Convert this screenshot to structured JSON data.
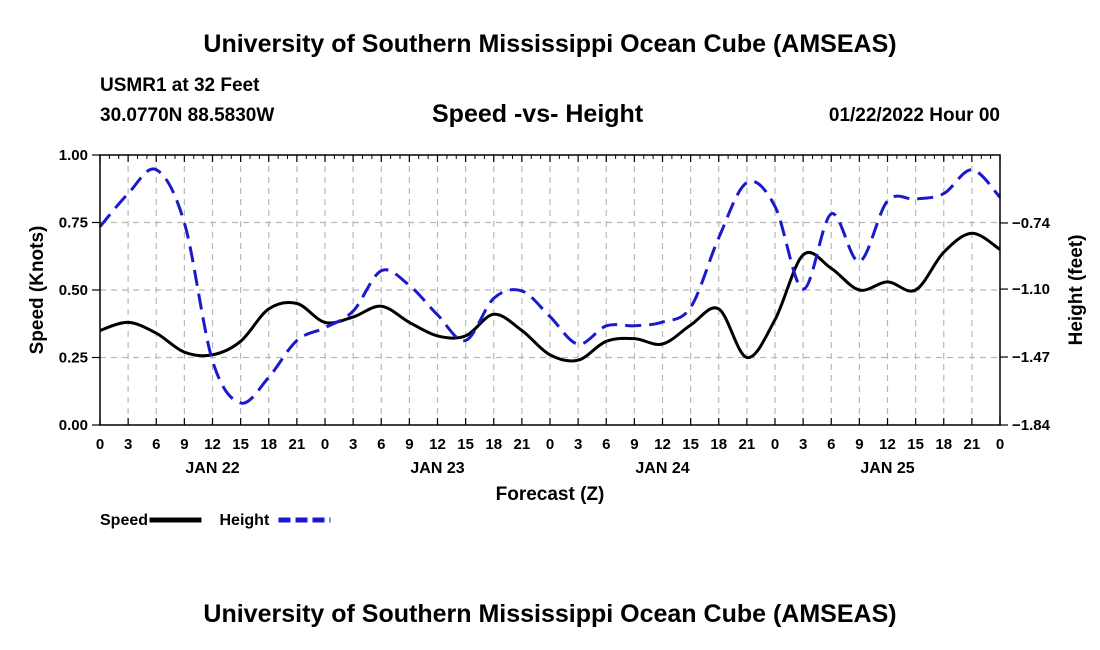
{
  "header": {
    "title": "University of Southern Mississippi Ocean Cube (AMSEAS)",
    "station": "USMR1 at 32 Feet",
    "coords": "30.0770N  88.5830W",
    "chart_title": "Speed -vs- Height",
    "datetime": "01/22/2022 Hour 00"
  },
  "footer": {
    "title": "University of Southern Mississippi Ocean Cube (AMSEAS)"
  },
  "chart_data": {
    "type": "line",
    "title": "Speed -vs- Height",
    "xlabel": "Forecast (Z)",
    "ylabel": "Speed (Knots)",
    "y2label": "Height (feet)",
    "x_unit": "forecast hour",
    "xlim": [
      0,
      96
    ],
    "ylim": [
      0,
      1.0
    ],
    "y2lim": [
      -1.84,
      -0.37
    ],
    "grid": true,
    "x_ticks": [
      0,
      3,
      6,
      9,
      12,
      15,
      18,
      21,
      24,
      27,
      30,
      33,
      36,
      39,
      42,
      45,
      48,
      51,
      54,
      57,
      60,
      63,
      66,
      69,
      72,
      75,
      78,
      81,
      84,
      87,
      90,
      93,
      96
    ],
    "x_tick_labels": [
      "0",
      "3",
      "6",
      "9",
      "12",
      "15",
      "18",
      "21",
      "0",
      "3",
      "6",
      "9",
      "12",
      "15",
      "18",
      "21",
      "0",
      "3",
      "6",
      "9",
      "12",
      "15",
      "18",
      "21",
      "0",
      "3",
      "6",
      "9",
      "12",
      "15",
      "18",
      "21",
      "0"
    ],
    "day_labels": [
      {
        "label": "JAN 22",
        "x": 12
      },
      {
        "label": "JAN 23",
        "x": 36
      },
      {
        "label": "JAN 24",
        "x": 60
      },
      {
        "label": "JAN 25",
        "x": 84
      }
    ],
    "y_ticks": [
      0,
      0.25,
      0.5,
      0.75,
      1.0
    ],
    "y_tick_labels": [
      "0.00",
      "0.25",
      "0.50",
      "0.75",
      "1.00"
    ],
    "y2_ticks": [
      -1.84,
      -1.47,
      -1.1,
      -0.74
    ],
    "y2_tick_labels": [
      "-1.84",
      "-1.47",
      "-1.10",
      "-0.74"
    ],
    "legend": {
      "placement": "bottom-left",
      "items": [
        {
          "label": "Speed",
          "color": "#000000",
          "style": "solid"
        },
        {
          "label": "Height",
          "color": "#1a1acc",
          "style": "dashed"
        }
      ]
    },
    "series": [
      {
        "name": "Speed",
        "axis": "left",
        "color": "#000000",
        "style": "solid",
        "x": [
          0,
          3,
          6,
          9,
          12,
          15,
          18,
          21,
          24,
          27,
          30,
          33,
          36,
          39,
          42,
          45,
          48,
          51,
          54,
          57,
          60,
          63,
          66,
          69,
          72,
          75,
          78,
          81,
          84,
          87,
          90,
          93,
          96
        ],
        "values": [
          0.35,
          0.38,
          0.34,
          0.27,
          0.26,
          0.31,
          0.43,
          0.45,
          0.38,
          0.4,
          0.44,
          0.38,
          0.33,
          0.33,
          0.41,
          0.35,
          0.26,
          0.24,
          0.31,
          0.32,
          0.3,
          0.37,
          0.43,
          0.25,
          0.39,
          0.63,
          0.58,
          0.5,
          0.53,
          0.5,
          0.64,
          0.71,
          0.65
        ]
      },
      {
        "name": "Height",
        "axis": "right",
        "color": "#1a1acc",
        "style": "dashed",
        "x": [
          0,
          3,
          6,
          9,
          12,
          15,
          18,
          21,
          24,
          27,
          30,
          33,
          36,
          39,
          42,
          45,
          48,
          51,
          54,
          57,
          60,
          63,
          66,
          69,
          72,
          75,
          78,
          81,
          84,
          87,
          90,
          93,
          96
        ],
        "values": [
          -0.76,
          -0.58,
          -0.45,
          -0.74,
          -1.49,
          -1.72,
          -1.58,
          -1.38,
          -1.31,
          -1.22,
          -1.0,
          -1.08,
          -1.24,
          -1.38,
          -1.15,
          -1.11,
          -1.25,
          -1.4,
          -1.3,
          -1.3,
          -1.28,
          -1.2,
          -0.82,
          -0.52,
          -0.65,
          -1.1,
          -0.69,
          -0.95,
          -0.62,
          -0.61,
          -0.58,
          -0.45,
          -0.6
        ]
      }
    ]
  }
}
